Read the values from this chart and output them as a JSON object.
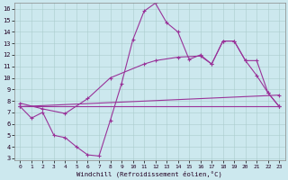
{
  "xlabel": "Windchill (Refroidissement éolien,°C)",
  "bg_color": "#cce8ee",
  "grid_color": "#aacccc",
  "line_color": "#993399",
  "xlim": [
    -0.5,
    23.5
  ],
  "ylim": [
    2.8,
    16.5
  ],
  "xticks": [
    0,
    1,
    2,
    3,
    4,
    5,
    6,
    7,
    8,
    9,
    10,
    11,
    12,
    13,
    14,
    15,
    16,
    17,
    18,
    19,
    20,
    21,
    22,
    23
  ],
  "yticks": [
    3,
    4,
    5,
    6,
    7,
    8,
    9,
    10,
    11,
    12,
    13,
    14,
    15,
    16
  ],
  "line1_x": [
    0,
    1,
    2,
    3,
    4,
    5,
    6,
    7,
    8,
    9,
    10,
    11,
    12,
    13,
    14,
    15,
    16,
    17,
    18,
    19,
    20,
    21,
    22,
    23
  ],
  "line1_y": [
    7.5,
    6.5,
    7.0,
    5.0,
    4.8,
    4.0,
    3.3,
    3.2,
    6.3,
    9.5,
    13.3,
    15.8,
    16.5,
    14.8,
    14.0,
    11.6,
    12.0,
    11.2,
    13.2,
    13.2,
    11.5,
    10.2,
    8.7,
    7.5
  ],
  "line2_x": [
    0,
    2,
    4,
    6,
    8,
    11,
    12,
    14,
    16,
    17,
    18,
    19,
    20,
    21,
    22,
    23
  ],
  "line2_y": [
    7.8,
    7.3,
    6.9,
    8.2,
    10.0,
    11.2,
    11.5,
    11.8,
    11.9,
    11.2,
    13.2,
    13.2,
    11.5,
    11.5,
    8.7,
    7.5
  ],
  "line3_x": [
    0,
    23
  ],
  "line3_y": [
    7.5,
    8.5
  ],
  "line4_x": [
    0,
    23
  ],
  "line4_y": [
    7.5,
    7.5
  ]
}
